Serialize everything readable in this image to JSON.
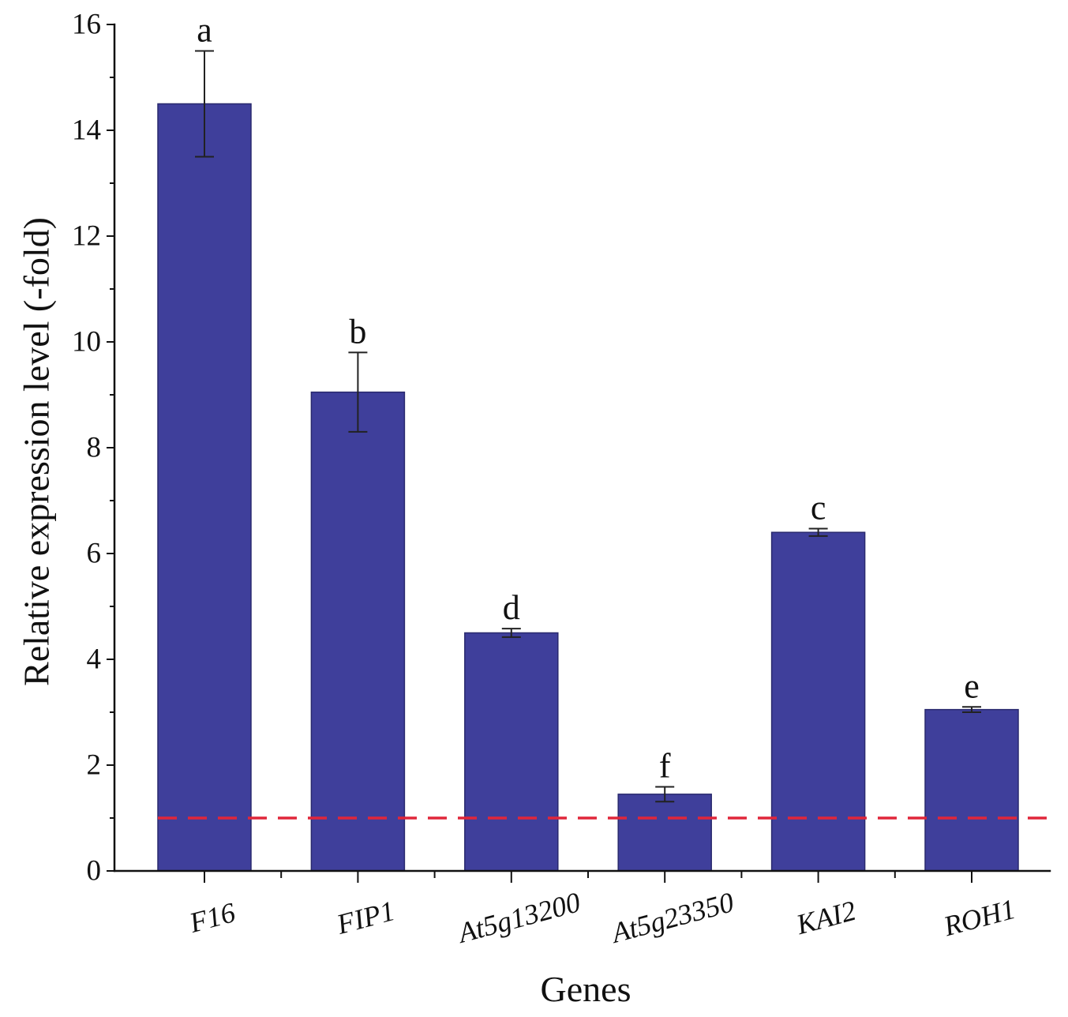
{
  "chart_data": {
    "type": "bar",
    "categories": [
      "F16",
      "FIP1",
      "At5g13200",
      "At5g23350",
      "KAI2",
      "ROH1"
    ],
    "values": [
      14.5,
      9.05,
      4.5,
      1.45,
      6.4,
      3.05
    ],
    "errors": [
      1.0,
      0.75,
      0.08,
      0.14,
      0.07,
      0.05
    ],
    "significance_letters": [
      "a",
      "b",
      "d",
      "f",
      "c",
      "e"
    ],
    "xlabel": "Genes",
    "ylabel": "Relative expression level (-fold)",
    "ylim": [
      0,
      16
    ],
    "yticks": [
      0,
      2,
      4,
      6,
      8,
      10,
      12,
      14,
      16
    ],
    "y_minor_ticks": [
      1,
      3,
      5,
      7,
      9,
      11,
      13,
      15
    ],
    "reference_line": 1
  },
  "colors": {
    "bar": "#3f3f9b",
    "bar_edge": "#2a2a6e",
    "error_bar": "#222222",
    "reference_line": "#e0263a",
    "axis": "#111111"
  }
}
